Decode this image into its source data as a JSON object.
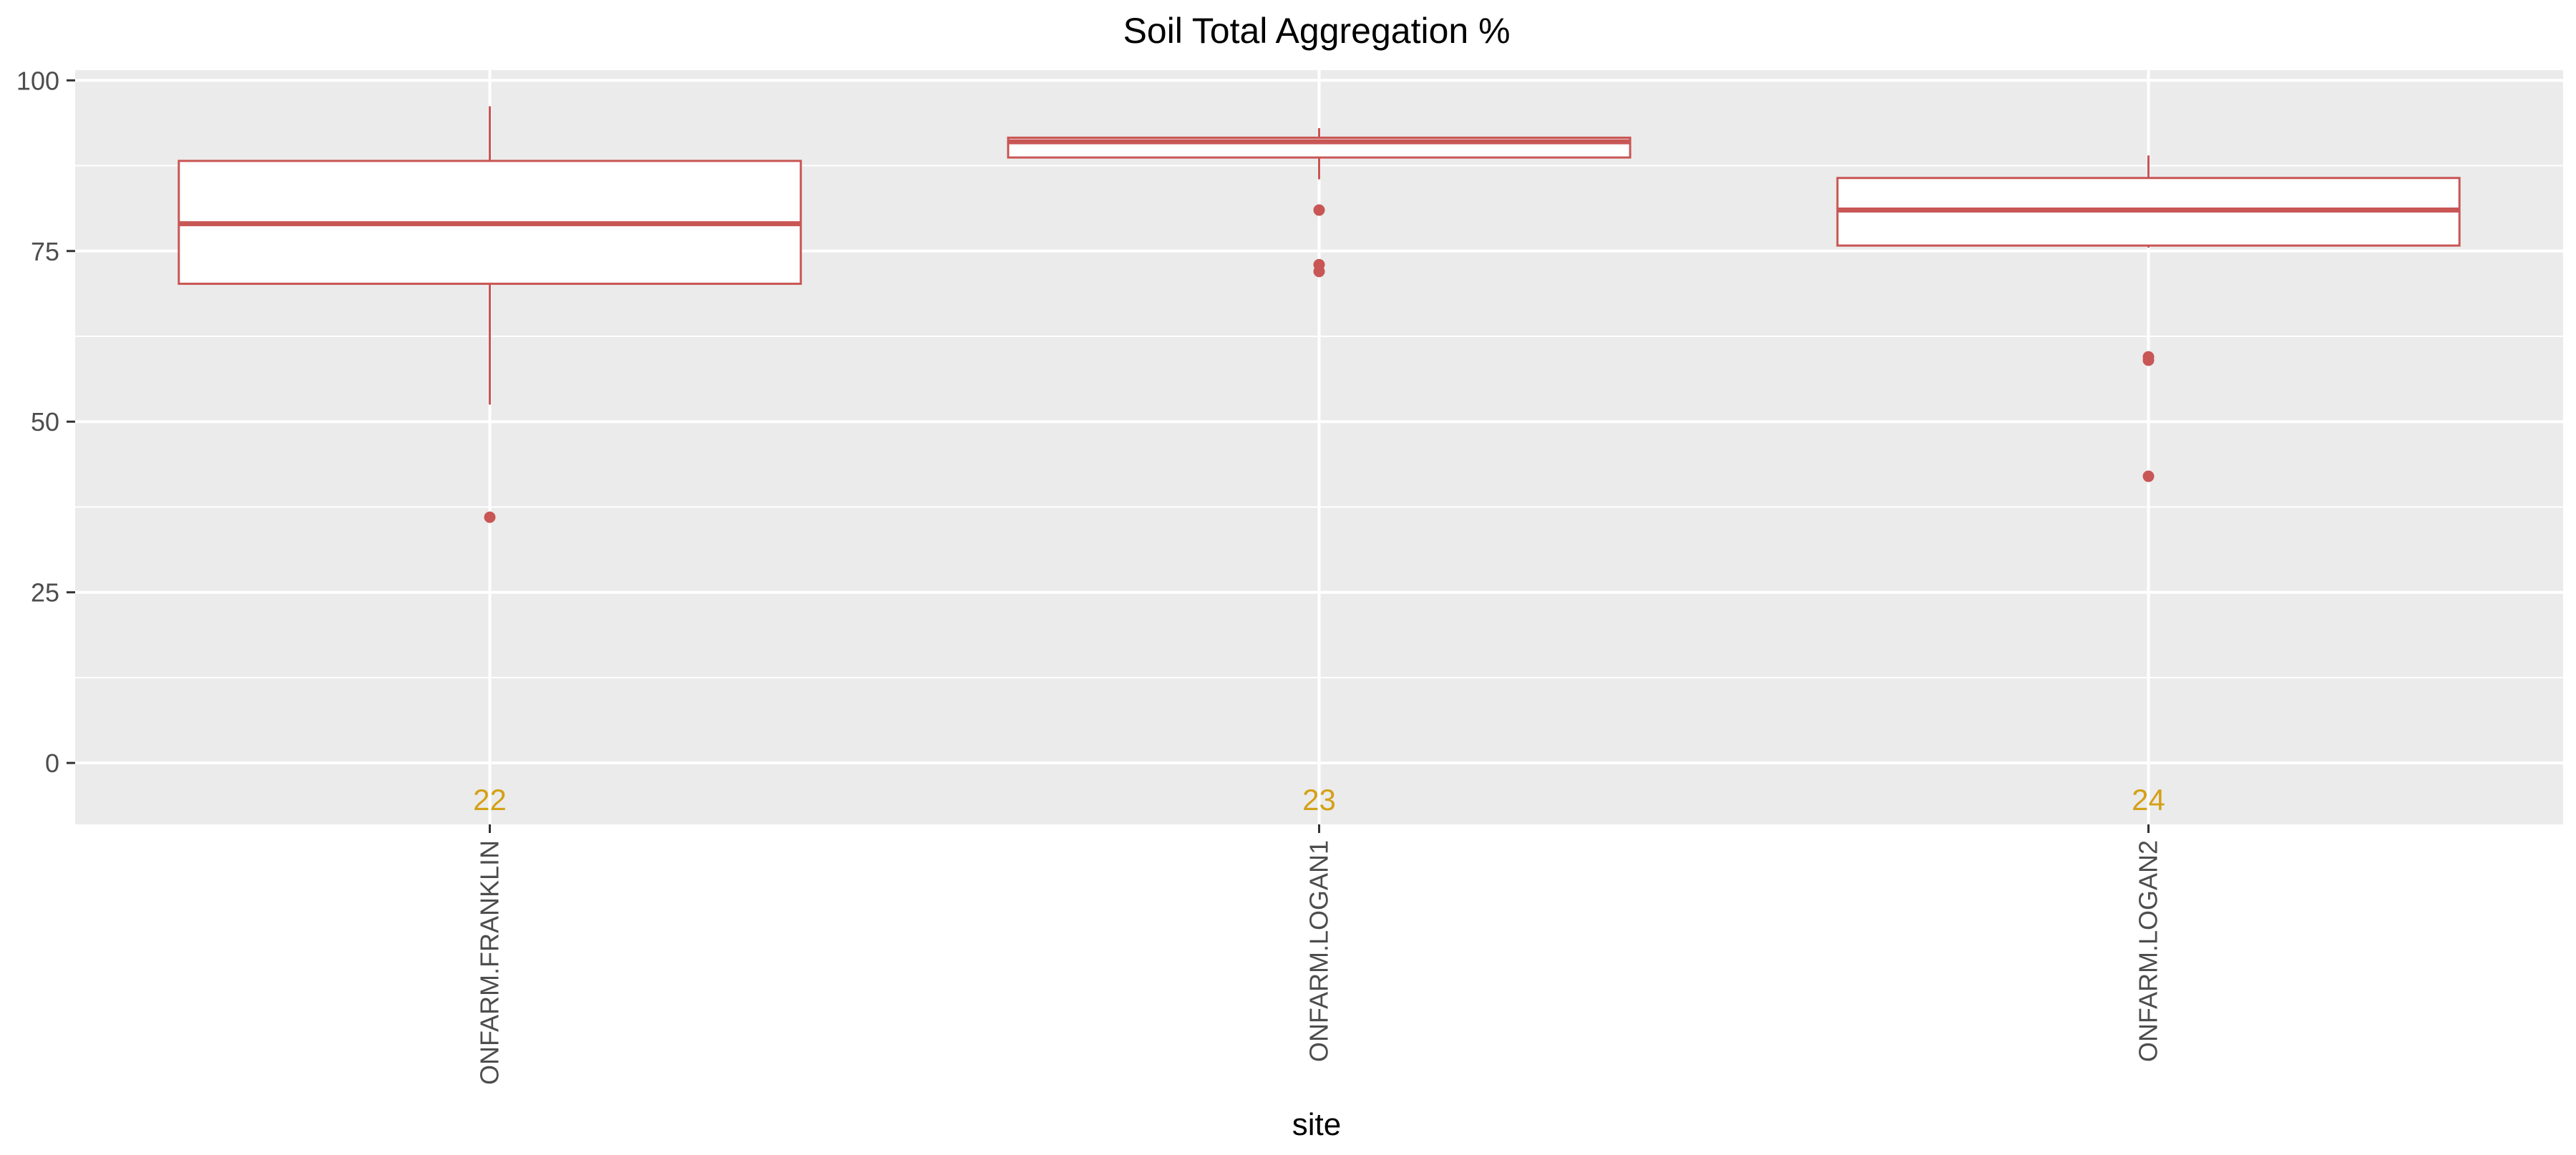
{
  "chart_data": {
    "type": "box",
    "title": "Soil Total Aggregation %",
    "xlabel": "site",
    "ylabel": "",
    "ylim": [
      -9,
      101.5
    ],
    "yticks": [
      0,
      25,
      50,
      75,
      100
    ],
    "grid": true,
    "legend": "none",
    "categories": [
      "ONFARM.FRANKLIN",
      "ONFARM.LOGAN1",
      "ONFARM.LOGAN2"
    ],
    "counts": [
      "22",
      "23",
      "24"
    ],
    "boxes": [
      {
        "category": "ONFARM.FRANKLIN",
        "whisker_low": 52.5,
        "q1": 70.2,
        "median": 79,
        "q3": 88.2,
        "whisker_high": 96.2,
        "outliers": [
          36
        ]
      },
      {
        "category": "ONFARM.LOGAN1",
        "whisker_low": 85.5,
        "q1": 88.7,
        "median": 91,
        "q3": 91.6,
        "whisker_high": 93,
        "outliers": [
          81,
          73,
          72
        ]
      },
      {
        "category": "ONFARM.LOGAN2",
        "whisker_low": 75.5,
        "q1": 75.8,
        "median": 81,
        "q3": 85.7,
        "whisker_high": 89,
        "outliers": [
          59.5,
          59,
          42
        ]
      }
    ],
    "colors": {
      "box_stroke": "#c85655",
      "box_fill": "#ffffff",
      "count_label": "#d4a017",
      "panel_bg": "#ebebeb",
      "grid": "#ffffff",
      "axis_text": "#4d4d4d",
      "title_text": "#000000"
    }
  }
}
